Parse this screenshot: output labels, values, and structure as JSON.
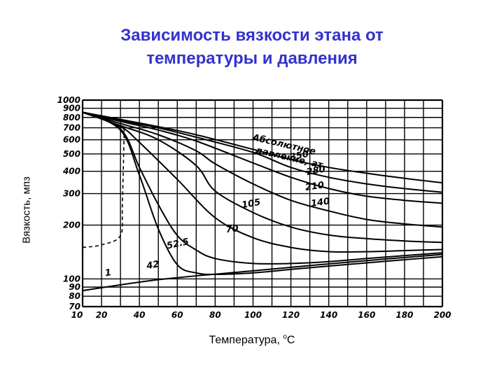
{
  "title_line1": "Зависимость вязкости этана от",
  "title_line2": "температуры и давления",
  "colors": {
    "title": "#3333cc",
    "grid": "#000000",
    "curve": "#000000"
  },
  "chart_data": {
    "type": "line",
    "xlabel": "Температура,",
    "xlabel_unit_sup": "o",
    "xlabel_unit": "C",
    "ylabel": "Вязкость, мпз",
    "xlim": [
      10,
      200
    ],
    "ylim": [
      70,
      1000
    ],
    "y_scale": "log",
    "grid": true,
    "x_ticks": [
      "10",
      "20",
      "40",
      "60",
      "80",
      "100",
      "120",
      "140",
      "160",
      "180",
      "200"
    ],
    "y_ticks": [
      "1000",
      "900",
      "800",
      "700",
      "600",
      "500",
      "400",
      "300",
      "200",
      "100",
      "90",
      "80",
      "70"
    ],
    "legend_text_line1": "Абсолютное",
    "legend_text_line2": "давление, ат",
    "series": [
      {
        "name": "1",
        "x": [
          10,
          50,
          100,
          150,
          200
        ],
        "y": [
          86,
          99,
          111,
          124,
          137
        ]
      },
      {
        "name": "42",
        "x": [
          10,
          30,
          40,
          50,
          60,
          70,
          80,
          100,
          120,
          140,
          160,
          180,
          200
        ],
        "y": [
          855,
          680,
          380,
          190,
          120,
          108,
          106,
          108,
          113,
          118,
          123,
          128,
          133
        ]
      },
      {
        "name": "52.5",
        "x": [
          10,
          30,
          40,
          50,
          60,
          70,
          80,
          100,
          120,
          140,
          160,
          180,
          200
        ],
        "y": [
          855,
          690,
          420,
          260,
          175,
          145,
          130,
          122,
          122,
          125,
          130,
          135,
          140
        ]
      },
      {
        "name": "70",
        "x": [
          10,
          30,
          40,
          60,
          80,
          100,
          120,
          140,
          160,
          180,
          200
        ],
        "y": [
          855,
          710,
          580,
          360,
          220,
          170,
          150,
          142,
          142,
          144,
          146
        ]
      },
      {
        "name": "105",
        "x": [
          10,
          30,
          50,
          70,
          80,
          100,
          120,
          140,
          160,
          180,
          200
        ],
        "y": [
          855,
          720,
          600,
          430,
          310,
          235,
          195,
          176,
          168,
          163,
          160
        ]
      },
      {
        "name": "140",
        "x": [
          10,
          30,
          50,
          70,
          80,
          100,
          120,
          140,
          160,
          180,
          200
        ],
        "y": [
          855,
          740,
          640,
          520,
          440,
          340,
          275,
          240,
          215,
          203,
          195
        ]
      },
      {
        "name": "210",
        "x": [
          10,
          30,
          50,
          70,
          100,
          120,
          140,
          160,
          180,
          200
        ],
        "y": [
          855,
          760,
          680,
          590,
          445,
          370,
          320,
          290,
          275,
          265
        ]
      },
      {
        "name": "280",
        "x": [
          10,
          30,
          50,
          70,
          100,
          120,
          140,
          160,
          180,
          200
        ],
        "y": [
          855,
          770,
          700,
          620,
          510,
          420,
          370,
          340,
          320,
          305
        ]
      },
      {
        "name": "350",
        "x": [
          10,
          30,
          50,
          70,
          100,
          120,
          140,
          160,
          180,
          200
        ],
        "y": [
          855,
          780,
          710,
          640,
          530,
          465,
          420,
          390,
          365,
          345
        ]
      }
    ],
    "boundary_curve": {
      "x": [
        10,
        20,
        30,
        31,
        32
      ],
      "y": [
        150,
        155,
        175,
        260,
        700
      ]
    }
  }
}
